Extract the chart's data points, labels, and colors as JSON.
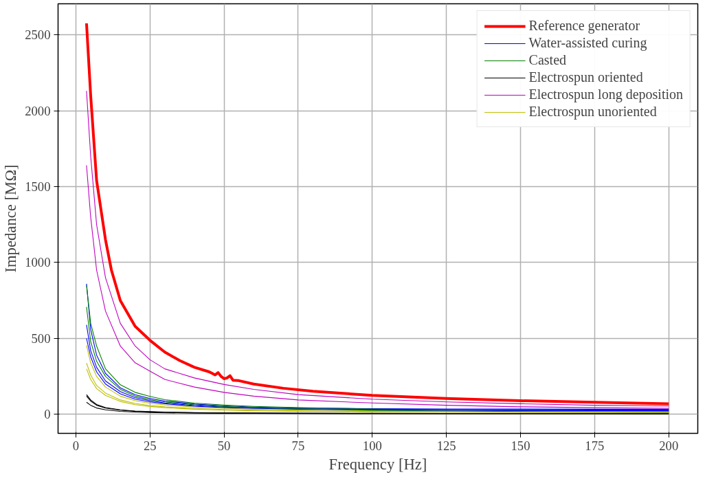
{
  "chart_data": {
    "type": "line",
    "xlabel": "Frequency [Hz]",
    "ylabel": "Impedance [MΩ]",
    "xlim": [
      -6,
      209.8
    ],
    "ylim": [
      -125,
      2704
    ],
    "xticks": [
      0,
      25,
      50,
      75,
      100,
      125,
      150,
      175,
      200
    ],
    "yticks": [
      0,
      500,
      1000,
      1500,
      2000,
      2500
    ],
    "grid": true,
    "legend": "top right",
    "line_style": "solid",
    "x": [
      3.6,
      5,
      7,
      10,
      15,
      20,
      25,
      30,
      40,
      50,
      60,
      75,
      100,
      125,
      150,
      175,
      200
    ],
    "series": [
      {
        "name": "Reference generator",
        "color": "#ff0000",
        "x": [
          3.6,
          5,
          7,
          10,
          12,
          15,
          20,
          25,
          30,
          35,
          40,
          45,
          47,
          48,
          49,
          50,
          51,
          52,
          53,
          55,
          60,
          70,
          80,
          100,
          125,
          150,
          175,
          200
        ],
        "values": [
          2575,
          2100,
          1540,
          1150,
          950,
          750,
          580,
          488,
          410,
          355,
          310,
          280,
          260,
          275,
          250,
          235,
          240,
          255,
          225,
          222,
          200,
          172,
          152,
          125,
          105,
          90,
          80,
          70
        ]
      },
      {
        "name": "Water-assisted curing",
        "color": "#0000ff",
        "values": [
          860,
          560,
          390,
          270,
          175,
          130,
          105,
          88,
          68,
          56,
          48,
          42,
          38,
          36,
          35,
          34,
          34
        ]
      },
      {
        "name": "Casted",
        "color": "#008000",
        "values": [
          850,
          600,
          450,
          300,
          195,
          145,
          118,
          97,
          74,
          62,
          53,
          45,
          36,
          30,
          24,
          22,
          21
        ]
      },
      {
        "name": "Electrospun oriented",
        "color": "#000000",
        "values": [
          130,
          95,
          65,
          45,
          30,
          22,
          18,
          15,
          12,
          10,
          9,
          8,
          7,
          6,
          6,
          5,
          5
        ]
      },
      {
        "name": "Electrospun long deposition",
        "color": "#bf00bf",
        "values": [
          2130,
          1700,
          1250,
          900,
          600,
          450,
          360,
          300,
          240,
          197,
          165,
          130,
          100,
          82,
          70,
          60,
          55
        ]
      },
      {
        "name": "Electrospun unoriented",
        "color": "#bfbf00",
        "values": [
          455,
          340,
          250,
          180,
          120,
          90,
          73,
          62,
          48,
          40,
          34,
          29,
          24,
          21,
          19,
          18,
          17
        ]
      },
      {
        "color": "#0000ff",
        "values": [
          590,
          420,
          310,
          220,
          150,
          110,
          90,
          75,
          58,
          48,
          42,
          37,
          33,
          31,
          30,
          29,
          29
        ]
      },
      {
        "color": "#0000ff",
        "values": [
          500,
          380,
          280,
          200,
          135,
          100,
          82,
          70,
          54,
          45,
          40,
          34,
          29,
          27,
          26,
          25,
          25
        ]
      },
      {
        "color": "#008000",
        "values": [
          708,
          480,
          350,
          250,
          165,
          120,
          97,
          82,
          63,
          52,
          45,
          37,
          27,
          22,
          19,
          17,
          16
        ]
      },
      {
        "color": "#000000",
        "values": [
          120,
          88,
          60,
          42,
          28,
          20,
          16,
          14,
          11,
          9,
          8,
          7,
          6,
          5,
          5,
          5,
          4
        ]
      },
      {
        "color": "#000000",
        "values": [
          80,
          60,
          42,
          30,
          20,
          15,
          12,
          10,
          8,
          7,
          6,
          5,
          4,
          4,
          4,
          4,
          3
        ]
      },
      {
        "color": "#bf00bf",
        "values": [
          1640,
          1300,
          950,
          680,
          450,
          340,
          285,
          230,
          180,
          145,
          120,
          95,
          75,
          60,
          50,
          44,
          40
        ]
      },
      {
        "color": "#bfbf00",
        "values": [
          338,
          260,
          190,
          140,
          95,
          72,
          58,
          50,
          39,
          32,
          28,
          23,
          19,
          17,
          15,
          14,
          13
        ]
      },
      {
        "color": "#bfbf00",
        "values": [
          300,
          230,
          170,
          125,
          85,
          64,
          52,
          44,
          34,
          28,
          24,
          20,
          16,
          14,
          13,
          12,
          11
        ]
      }
    ]
  }
}
